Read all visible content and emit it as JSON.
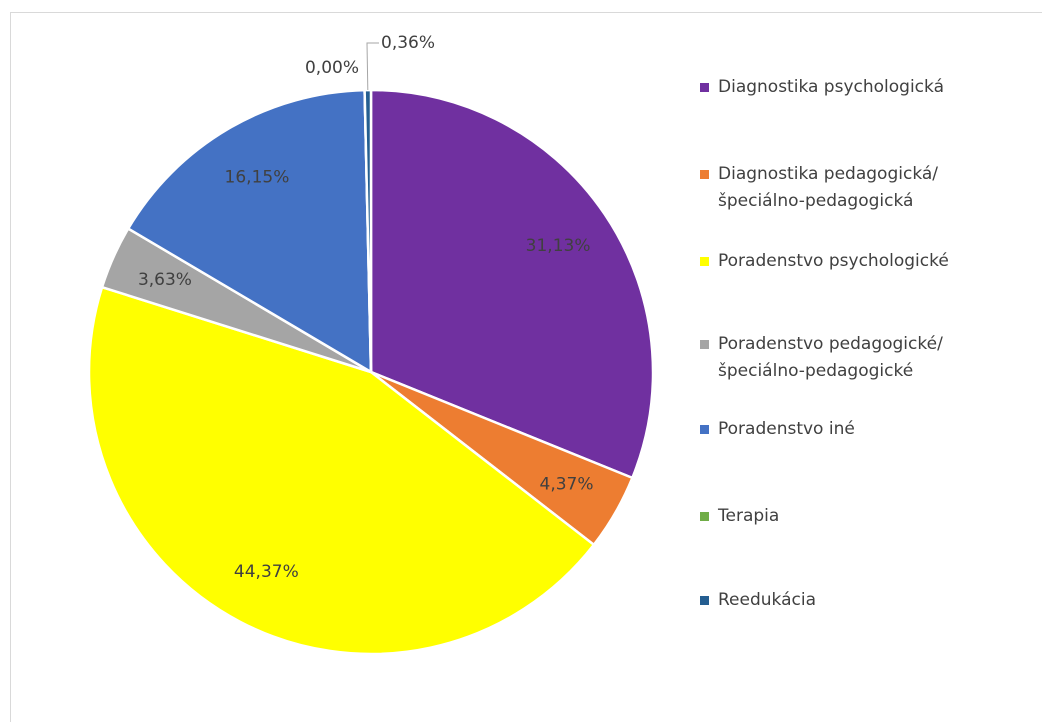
{
  "chart_data": {
    "type": "pie",
    "categories": [
      "Diagnostika psychologická",
      "Diagnostika pedagogická/špeciálno-pedagogická",
      "Poradenstvo psychologické",
      "Poradenstvo pedagogické/špeciálno-pedagogické",
      "Poradenstvo iné",
      "Terapia",
      "Reedukácia"
    ],
    "values": [
      31.13,
      4.37,
      44.37,
      3.63,
      16.15,
      0.0,
      0.36
    ],
    "value_labels": [
      "31,13%",
      "4,37%",
      "44,37%",
      "3,63%",
      "16,15%",
      "0,00%",
      "0,36%"
    ],
    "colors": [
      "#7030a0",
      "#ed7d31",
      "#ffff00",
      "#a5a5a5",
      "#4472c4",
      "#70ad47",
      "#255e91"
    ],
    "legend": "right"
  }
}
